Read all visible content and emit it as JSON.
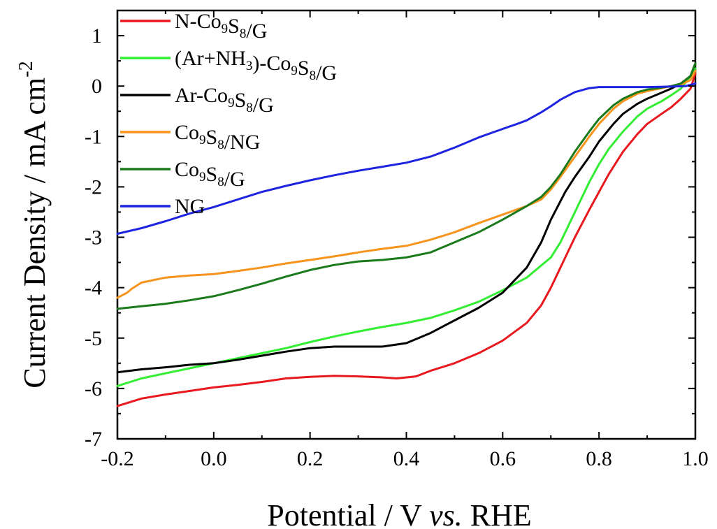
{
  "chart_data": {
    "type": "line",
    "xlabel": {
      "main": "Potential / V ",
      "italic": "vs.",
      "tail": " RHE"
    },
    "ylabel": {
      "main": "Current Density / mA cm",
      "sup": "-2"
    },
    "xlim": [
      -0.2,
      1.0
    ],
    "ylim": [
      -7,
      1.5
    ],
    "x_ticks": [
      -0.2,
      0.0,
      0.2,
      0.4,
      0.6,
      0.8,
      1.0
    ],
    "x_tick_labels": [
      "-0.2",
      "0.0",
      "0.2",
      "0.4",
      "0.6",
      "0.8",
      "1.0"
    ],
    "y_ticks": [
      -7,
      -6,
      -5,
      -4,
      -3,
      -2,
      -1,
      0,
      1
    ],
    "y_tick_labels": [
      "-7",
      "-6",
      "-5",
      "-4",
      "-3",
      "-2",
      "-1",
      "0",
      "1"
    ],
    "grid": false,
    "legend_position": "top-left",
    "series": [
      {
        "name": "N-Co9S8/G",
        "legend_parts": [
          [
            "N-Co",
            ""
          ],
          [
            "9",
            "sub"
          ],
          [
            "S",
            ""
          ],
          [
            "8",
            "sub"
          ],
          [
            "/G",
            ""
          ]
        ],
        "color": "#e8191f",
        "x": [
          -0.2,
          -0.15,
          -0.1,
          -0.05,
          0.0,
          0.05,
          0.1,
          0.15,
          0.2,
          0.25,
          0.3,
          0.35,
          0.38,
          0.42,
          0.45,
          0.5,
          0.55,
          0.6,
          0.65,
          0.68,
          0.7,
          0.72,
          0.75,
          0.78,
          0.8,
          0.82,
          0.85,
          0.88,
          0.9,
          0.93,
          0.95,
          0.97,
          0.99,
          1.0
        ],
        "y": [
          -6.35,
          -6.2,
          -6.12,
          -6.05,
          -5.98,
          -5.93,
          -5.87,
          -5.8,
          -5.77,
          -5.75,
          -5.76,
          -5.78,
          -5.8,
          -5.76,
          -5.65,
          -5.5,
          -5.3,
          -5.05,
          -4.7,
          -4.35,
          -4.0,
          -3.6,
          -3.0,
          -2.45,
          -2.1,
          -1.75,
          -1.3,
          -0.95,
          -0.75,
          -0.55,
          -0.42,
          -0.25,
          -0.05,
          0.25
        ]
      },
      {
        "name": "(Ar+NH3)-Co9S8/G",
        "legend_parts": [
          [
            "(Ar+NH",
            ""
          ],
          [
            "3",
            "sub"
          ],
          [
            ")-Co",
            ""
          ],
          [
            "9",
            "sub"
          ],
          [
            "S",
            ""
          ],
          [
            "8",
            "sub"
          ],
          [
            "/G",
            ""
          ]
        ],
        "color": "#33ee33",
        "x": [
          -0.2,
          -0.15,
          -0.1,
          -0.05,
          0.0,
          0.05,
          0.1,
          0.15,
          0.2,
          0.25,
          0.3,
          0.35,
          0.4,
          0.45,
          0.5,
          0.55,
          0.6,
          0.65,
          0.7,
          0.72,
          0.75,
          0.78,
          0.8,
          0.82,
          0.85,
          0.88,
          0.9,
          0.93,
          0.95,
          0.97,
          0.99,
          1.0
        ],
        "y": [
          -5.95,
          -5.8,
          -5.7,
          -5.6,
          -5.5,
          -5.4,
          -5.3,
          -5.2,
          -5.08,
          -4.97,
          -4.87,
          -4.78,
          -4.7,
          -4.6,
          -4.45,
          -4.28,
          -4.05,
          -3.8,
          -3.4,
          -3.1,
          -2.5,
          -1.9,
          -1.55,
          -1.25,
          -0.9,
          -0.6,
          -0.45,
          -0.3,
          -0.18,
          -0.05,
          0.2,
          0.35
        ]
      },
      {
        "name": "Ar-Co9S8/G",
        "legend_parts": [
          [
            "Ar-Co",
            ""
          ],
          [
            "9",
            "sub"
          ],
          [
            "S",
            ""
          ],
          [
            "8",
            "sub"
          ],
          [
            "/G",
            ""
          ]
        ],
        "color": "#000000",
        "x": [
          -0.2,
          -0.15,
          -0.1,
          -0.05,
          0.0,
          0.05,
          0.1,
          0.15,
          0.2,
          0.25,
          0.3,
          0.35,
          0.4,
          0.45,
          0.5,
          0.55,
          0.6,
          0.65,
          0.68,
          0.7,
          0.73,
          0.75,
          0.78,
          0.8,
          0.83,
          0.85,
          0.88,
          0.9,
          0.93,
          0.95,
          0.97,
          0.99,
          1.0
        ],
        "y": [
          -5.68,
          -5.62,
          -5.58,
          -5.53,
          -5.5,
          -5.43,
          -5.35,
          -5.27,
          -5.2,
          -5.17,
          -5.17,
          -5.17,
          -5.1,
          -4.9,
          -4.65,
          -4.4,
          -4.1,
          -3.6,
          -3.1,
          -2.65,
          -2.1,
          -1.8,
          -1.4,
          -1.1,
          -0.75,
          -0.55,
          -0.35,
          -0.25,
          -0.13,
          -0.05,
          0.05,
          0.2,
          0.45
        ]
      },
      {
        "name": "Co9S8/NG",
        "legend_parts": [
          [
            "Co",
            ""
          ],
          [
            "9",
            "sub"
          ],
          [
            "S",
            ""
          ],
          [
            "8",
            "sub"
          ],
          [
            "/NG",
            ""
          ]
        ],
        "color": "#f7941d",
        "x": [
          -0.2,
          -0.18,
          -0.17,
          -0.15,
          -0.1,
          -0.05,
          0.0,
          0.05,
          0.1,
          0.15,
          0.2,
          0.25,
          0.3,
          0.35,
          0.4,
          0.45,
          0.5,
          0.55,
          0.6,
          0.65,
          0.68,
          0.7,
          0.72,
          0.75,
          0.78,
          0.8,
          0.83,
          0.85,
          0.88,
          0.9,
          0.93,
          0.95,
          0.97,
          0.99,
          1.0
        ],
        "y": [
          -4.2,
          -4.1,
          -4.02,
          -3.9,
          -3.8,
          -3.76,
          -3.73,
          -3.67,
          -3.6,
          -3.52,
          -3.45,
          -3.38,
          -3.3,
          -3.23,
          -3.17,
          -3.05,
          -2.9,
          -2.72,
          -2.55,
          -2.38,
          -2.25,
          -2.05,
          -1.8,
          -1.4,
          -1.0,
          -0.75,
          -0.45,
          -0.3,
          -0.15,
          -0.1,
          -0.04,
          0.0,
          0.03,
          0.12,
          0.3
        ]
      },
      {
        "name": "Co9S8/G",
        "legend_parts": [
          [
            "Co",
            ""
          ],
          [
            "9",
            "sub"
          ],
          [
            "S",
            ""
          ],
          [
            "8",
            "sub"
          ],
          [
            "/G",
            ""
          ]
        ],
        "color": "#1b7a1b",
        "x": [
          -0.2,
          -0.15,
          -0.1,
          -0.05,
          0.0,
          0.05,
          0.1,
          0.15,
          0.2,
          0.25,
          0.3,
          0.35,
          0.4,
          0.45,
          0.5,
          0.55,
          0.6,
          0.65,
          0.68,
          0.7,
          0.72,
          0.75,
          0.78,
          0.8,
          0.83,
          0.85,
          0.88,
          0.9,
          0.93,
          0.95,
          0.97,
          0.99,
          1.0
        ],
        "y": [
          -4.42,
          -4.37,
          -4.32,
          -4.25,
          -4.17,
          -4.05,
          -3.92,
          -3.78,
          -3.65,
          -3.55,
          -3.48,
          -3.45,
          -3.4,
          -3.3,
          -3.1,
          -2.9,
          -2.65,
          -2.38,
          -2.2,
          -2.0,
          -1.75,
          -1.3,
          -0.9,
          -0.65,
          -0.38,
          -0.25,
          -0.12,
          -0.07,
          -0.03,
          0.0,
          0.05,
          0.2,
          0.45
        ]
      },
      {
        "name": "NG",
        "legend_parts": [
          [
            "NG",
            ""
          ]
        ],
        "color": "#1f24e0",
        "x": [
          -0.2,
          -0.15,
          -0.1,
          -0.05,
          0.0,
          0.05,
          0.1,
          0.15,
          0.2,
          0.25,
          0.3,
          0.35,
          0.4,
          0.45,
          0.5,
          0.55,
          0.6,
          0.63,
          0.65,
          0.68,
          0.7,
          0.72,
          0.75,
          0.78,
          0.8,
          0.85,
          0.9,
          0.95,
          0.98,
          1.0
        ],
        "y": [
          -2.93,
          -2.82,
          -2.68,
          -2.53,
          -2.4,
          -2.25,
          -2.1,
          -1.98,
          -1.87,
          -1.77,
          -1.68,
          -1.6,
          -1.52,
          -1.4,
          -1.22,
          -1.02,
          -0.85,
          -0.75,
          -0.68,
          -0.52,
          -0.4,
          -0.27,
          -0.12,
          -0.04,
          -0.02,
          -0.02,
          -0.02,
          -0.01,
          0.0,
          0.05
        ]
      }
    ]
  }
}
